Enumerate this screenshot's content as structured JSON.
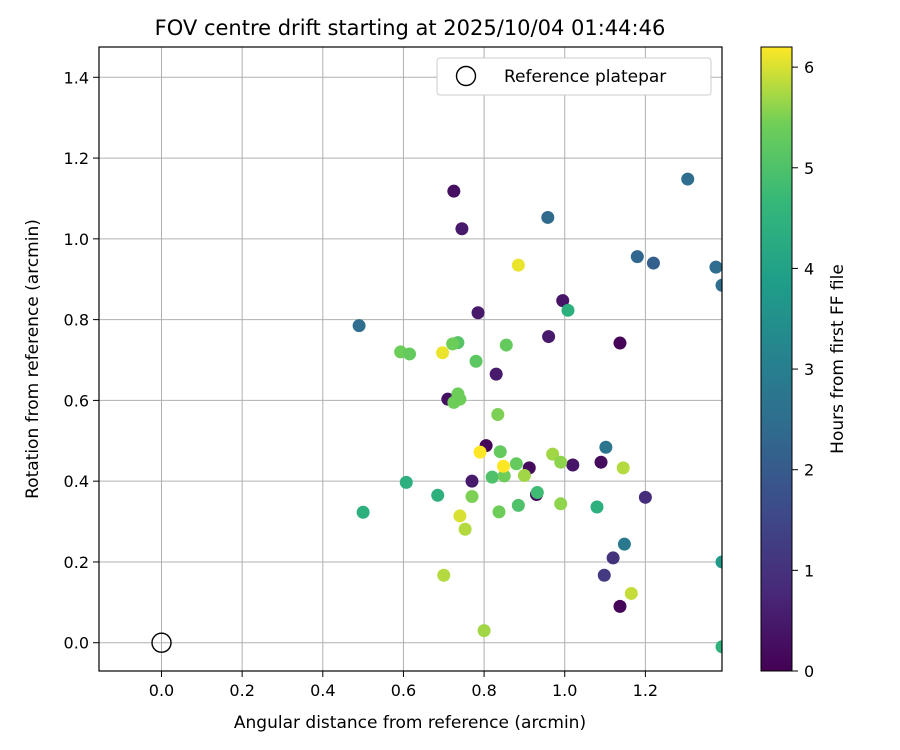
{
  "chart_data": {
    "type": "scatter",
    "title": "FOV centre drift starting at 2025/10/04 01:44:46",
    "xlabel": "Angular distance from reference (arcmin)",
    "ylabel": "Rotation from reference (arcmin)",
    "xlim": [
      -0.155,
      1.39
    ],
    "ylim": [
      -0.07,
      1.475
    ],
    "xticks": [
      "0.0",
      "0.2",
      "0.4",
      "0.6",
      "0.8",
      "1.0",
      "1.2"
    ],
    "xtick_values": [
      0.0,
      0.2,
      0.4,
      0.6,
      0.8,
      1.0,
      1.2
    ],
    "yticks": [
      "0.0",
      "0.2",
      "0.4",
      "0.6",
      "0.8",
      "1.0",
      "1.2",
      "1.4"
    ],
    "ytick_values": [
      0.0,
      0.2,
      0.4,
      0.6,
      0.8,
      1.0,
      1.2,
      1.4
    ],
    "grid": true,
    "legend": {
      "placement": "top-right",
      "label": "Reference platepar"
    },
    "reference_point": {
      "x": 0.0,
      "y": 0.0
    },
    "colorbar": {
      "label": "Hours from first FF file",
      "colormap": "viridis",
      "range": [
        0,
        6.2
      ],
      "ticks": [
        "0",
        "1",
        "2",
        "3",
        "4",
        "5",
        "6"
      ],
      "tick_values": [
        0,
        1,
        2,
        3,
        4,
        5,
        6
      ]
    },
    "points": [
      {
        "x": 0.725,
        "y": 1.118,
        "c": 0.3
      },
      {
        "x": 0.745,
        "y": 1.025,
        "c": 0.5
      },
      {
        "x": 0.785,
        "y": 0.817,
        "c": 0.5
      },
      {
        "x": 0.71,
        "y": 0.603,
        "c": 0.3
      },
      {
        "x": 0.83,
        "y": 0.665,
        "c": 0.5
      },
      {
        "x": 0.805,
        "y": 0.488,
        "c": 0.1
      },
      {
        "x": 0.77,
        "y": 0.4,
        "c": 0.5
      },
      {
        "x": 0.912,
        "y": 0.433,
        "c": 0.2
      },
      {
        "x": 0.93,
        "y": 0.367,
        "c": 0.2
      },
      {
        "x": 0.995,
        "y": 0.847,
        "c": 0.4
      },
      {
        "x": 0.96,
        "y": 0.758,
        "c": 0.5
      },
      {
        "x": 1.02,
        "y": 0.44,
        "c": 0.4
      },
      {
        "x": 1.09,
        "y": 0.447,
        "c": 0.2
      },
      {
        "x": 1.137,
        "y": 0.742,
        "c": 0.1
      },
      {
        "x": 1.137,
        "y": 0.09,
        "c": 0.1
      },
      {
        "x": 1.098,
        "y": 0.167,
        "c": 1.2
      },
      {
        "x": 1.12,
        "y": 0.21,
        "c": 1.0
      },
      {
        "x": 1.2,
        "y": 0.36,
        "c": 0.9
      },
      {
        "x": 0.958,
        "y": 1.053,
        "c": 2.4
      },
      {
        "x": 1.18,
        "y": 0.956,
        "c": 2.3
      },
      {
        "x": 1.22,
        "y": 0.94,
        "c": 2.1
      },
      {
        "x": 1.305,
        "y": 1.148,
        "c": 2.5
      },
      {
        "x": 1.375,
        "y": 0.93,
        "c": 2.5
      },
      {
        "x": 1.39,
        "y": 0.885,
        "c": 2.5
      },
      {
        "x": 0.49,
        "y": 0.785,
        "c": 2.5
      },
      {
        "x": 1.102,
        "y": 0.484,
        "c": 2.7
      },
      {
        "x": 1.148,
        "y": 0.244,
        "c": 2.8
      },
      {
        "x": 1.008,
        "y": 0.823,
        "c": 4.4
      },
      {
        "x": 0.5,
        "y": 0.323,
        "c": 4.4
      },
      {
        "x": 0.607,
        "y": 0.397,
        "c": 4.4
      },
      {
        "x": 0.685,
        "y": 0.365,
        "c": 4.4
      },
      {
        "x": 1.08,
        "y": 0.336,
        "c": 4.4
      },
      {
        "x": 0.932,
        "y": 0.372,
        "c": 4.8
      },
      {
        "x": 1.39,
        "y": -0.01,
        "c": 4.5
      },
      {
        "x": 1.39,
        "y": 0.2,
        "c": 3.8
      },
      {
        "x": 0.82,
        "y": 0.41,
        "c": 5.0
      },
      {
        "x": 0.885,
        "y": 0.34,
        "c": 5.0
      },
      {
        "x": 0.735,
        "y": 0.743,
        "c": 5.1
      },
      {
        "x": 0.78,
        "y": 0.697,
        "c": 5.2
      },
      {
        "x": 0.855,
        "y": 0.737,
        "c": 5.3
      },
      {
        "x": 0.722,
        "y": 0.74,
        "c": 5.4
      },
      {
        "x": 0.593,
        "y": 0.72,
        "c": 5.4
      },
      {
        "x": 0.615,
        "y": 0.715,
        "c": 5.3
      },
      {
        "x": 0.735,
        "y": 0.616,
        "c": 5.4
      },
      {
        "x": 0.74,
        "y": 0.603,
        "c": 5.4
      },
      {
        "x": 0.725,
        "y": 0.595,
        "c": 5.4
      },
      {
        "x": 0.834,
        "y": 0.565,
        "c": 5.5
      },
      {
        "x": 0.84,
        "y": 0.473,
        "c": 5.3
      },
      {
        "x": 0.85,
        "y": 0.413,
        "c": 5.4
      },
      {
        "x": 0.88,
        "y": 0.443,
        "c": 5.3
      },
      {
        "x": 0.77,
        "y": 0.362,
        "c": 5.5
      },
      {
        "x": 0.837,
        "y": 0.324,
        "c": 5.4
      },
      {
        "x": 0.9,
        "y": 0.414,
        "c": 5.7
      },
      {
        "x": 0.97,
        "y": 0.467,
        "c": 5.7
      },
      {
        "x": 0.99,
        "y": 0.447,
        "c": 5.6
      },
      {
        "x": 0.99,
        "y": 0.344,
        "c": 5.6
      },
      {
        "x": 1.145,
        "y": 0.433,
        "c": 5.8
      },
      {
        "x": 1.165,
        "y": 0.122,
        "c": 5.9
      },
      {
        "x": 0.753,
        "y": 0.281,
        "c": 5.8
      },
      {
        "x": 0.7,
        "y": 0.167,
        "c": 5.8
      },
      {
        "x": 0.8,
        "y": 0.03,
        "c": 5.7
      },
      {
        "x": 0.697,
        "y": 0.718,
        "c": 6.1
      },
      {
        "x": 0.885,
        "y": 0.935,
        "c": 6.1
      },
      {
        "x": 0.79,
        "y": 0.472,
        "c": 6.2
      },
      {
        "x": 0.848,
        "y": 0.437,
        "c": 6.2
      },
      {
        "x": 0.74,
        "y": 0.314,
        "c": 6.0
      }
    ]
  }
}
